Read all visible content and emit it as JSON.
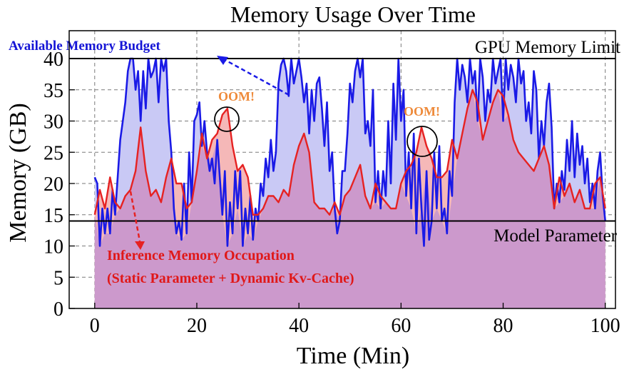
{
  "chart_data": {
    "type": "area",
    "title": "Memory Usage Over Time",
    "xlabel": "Time (Min)",
    "ylabel": "Memory (GB)",
    "xlim": [
      -5,
      102
    ],
    "ylim": [
      0,
      40
    ],
    "xticks": [
      0,
      20,
      40,
      60,
      80,
      100
    ],
    "yticks": [
      0,
      5,
      10,
      15,
      20,
      25,
      30,
      35,
      40
    ],
    "grid": true,
    "reference_lines": [
      {
        "y": 40,
        "label": "GPU Memory Limit"
      },
      {
        "y": 14,
        "label": "Model Parameter"
      }
    ],
    "series": [
      {
        "color": "#1a1ae6",
        "fill": "#c9c9f5",
        "x": [
          0,
          0.5,
          1,
          1.5,
          2,
          2.5,
          3,
          3.5,
          4,
          4.5,
          5,
          5.5,
          6,
          6.5,
          7,
          7.5,
          8,
          8.5,
          9,
          9.5,
          10,
          10.5,
          11,
          11.5,
          12,
          12.5,
          13,
          13.5,
          14,
          14.5,
          15,
          15.5,
          16,
          16.5,
          17,
          17.5,
          18,
          18.5,
          19,
          19.5,
          20,
          20.5,
          21,
          21.5,
          22,
          22.5,
          23,
          23.5,
          24,
          24.5,
          25,
          25.5,
          26,
          26.5,
          27,
          27.5,
          28,
          28.5,
          29,
          29.5,
          30,
          30.5,
          31,
          31.5,
          32,
          32.5,
          33,
          33.5,
          34,
          34.5,
          35,
          35.5,
          36,
          36.5,
          37,
          37.5,
          38,
          38.5,
          39,
          39.5,
          40,
          40.5,
          41,
          41.5,
          42,
          42.5,
          43,
          43.5,
          44,
          44.5,
          45,
          45.5,
          46,
          46.5,
          47,
          47.5,
          48,
          48.5,
          49,
          49.5,
          50,
          50.5,
          51,
          51.5,
          52,
          52.5,
          53,
          53.5,
          54,
          54.5,
          55,
          55.5,
          56,
          56.5,
          57,
          57.5,
          58,
          58.5,
          59,
          59.5,
          60,
          60.5,
          61,
          61.5,
          62,
          62.5,
          63,
          63.5,
          64,
          64.5,
          65,
          65.5,
          66,
          66.5,
          67,
          67.5,
          68,
          68.5,
          69,
          69.5,
          70,
          70.5,
          71,
          71.5,
          72,
          72.5,
          73,
          73.5,
          74,
          74.5,
          75,
          75.5,
          76,
          76.5,
          77,
          77.5,
          78,
          78.5,
          79,
          79.5,
          80,
          80.5,
          81,
          81.5,
          82,
          82.5,
          83,
          83.5,
          84,
          84.5,
          85,
          85.5,
          86,
          86.5,
          87,
          87.5,
          88,
          88.5,
          89,
          89.5,
          90,
          90.5,
          91,
          91.5,
          92,
          92.5,
          93,
          93.5,
          94,
          94.5,
          95,
          95.5,
          96,
          96.5,
          97,
          97.5,
          98,
          98.5,
          99,
          99.5,
          100
        ],
        "values": [
          21,
          20,
          10,
          16,
          12,
          16,
          12,
          19,
          15,
          21,
          27,
          30,
          33,
          38,
          40,
          40,
          35,
          38,
          30,
          38,
          32,
          40,
          37,
          38,
          40,
          33,
          40,
          38,
          40,
          30,
          25,
          16,
          12,
          14,
          11,
          20,
          12,
          25,
          17,
          30,
          31,
          33,
          26,
          30,
          25,
          22,
          24,
          20,
          27,
          21,
          15,
          22,
          10,
          17,
          12,
          22,
          16,
          22,
          10,
          16,
          12,
          18,
          11,
          16,
          14,
          20,
          18,
          24,
          21,
          27,
          22,
          25,
          36,
          39,
          40,
          38,
          34,
          40,
          36,
          38,
          40,
          37,
          33,
          36,
          28,
          35,
          30,
          36,
          37,
          32,
          26,
          33,
          22,
          25,
          16,
          12,
          14,
          22,
          22,
          28,
          36,
          33,
          38,
          40,
          37,
          40,
          28,
          30,
          26,
          35,
          17,
          22,
          16,
          22,
          18,
          30,
          20,
          36,
          27,
          40,
          30,
          35,
          18,
          25,
          16,
          28,
          12,
          24,
          16,
          10,
          22,
          11,
          14,
          25,
          16,
          26,
          14,
          16,
          12,
          22,
          18,
          33,
          40,
          35,
          39,
          37,
          33,
          40,
          36,
          38,
          30,
          40,
          37,
          30,
          35,
          33,
          40,
          36,
          38,
          40,
          30,
          40,
          35,
          39,
          37,
          33,
          40,
          36,
          38,
          30,
          33,
          28,
          38,
          35,
          24,
          30,
          26,
          33,
          36,
          29,
          16,
          20,
          17,
          22,
          19,
          27,
          22,
          30,
          21,
          28,
          23,
          26,
          20,
          24,
          17,
          20,
          16,
          22,
          25,
          18,
          14
        ]
      },
      {
        "color": "#e62222",
        "fill": "#f5b8b8",
        "x": [
          0,
          1,
          2,
          3,
          4,
          5,
          6,
          7,
          8,
          9,
          10,
          11,
          12,
          13,
          14,
          15,
          16,
          17,
          18,
          19,
          20,
          21,
          22,
          23,
          24,
          25,
          26,
          27,
          28,
          29,
          30,
          31,
          32,
          33,
          34,
          35,
          36,
          37,
          38,
          39,
          40,
          41,
          42,
          43,
          44,
          45,
          46,
          47,
          48,
          49,
          50,
          51,
          52,
          53,
          54,
          55,
          56,
          57,
          58,
          59,
          60,
          61,
          62,
          63,
          64,
          65,
          66,
          67,
          68,
          69,
          70,
          71,
          72,
          73,
          74,
          75,
          76,
          77,
          78,
          79,
          80,
          81,
          82,
          83,
          84,
          85,
          86,
          87,
          88,
          89,
          90,
          91,
          92,
          93,
          94,
          95,
          96,
          97,
          98,
          99,
          100
        ],
        "values": [
          15,
          19,
          16,
          21,
          17,
          16,
          18,
          19,
          22,
          29,
          22,
          18,
          19,
          17,
          21,
          24,
          20,
          20,
          16,
          17,
          22,
          28,
          24,
          27,
          28,
          31,
          32,
          26,
          22,
          23,
          21,
          15,
          15,
          16,
          18,
          18,
          17,
          19,
          18,
          23,
          26,
          28,
          25,
          17,
          16,
          16,
          15,
          17,
          15,
          18,
          19,
          21,
          23,
          18,
          16,
          20,
          18,
          17,
          16,
          16,
          20,
          22,
          23,
          25,
          29,
          26,
          24,
          21,
          21,
          22,
          27,
          24,
          28,
          32,
          35,
          33,
          27,
          30,
          33,
          35,
          34,
          31,
          27,
          25,
          24,
          23,
          22,
          24,
          26,
          23,
          16,
          21,
          18,
          20,
          17,
          19,
          16,
          16,
          20,
          21,
          16
        ]
      }
    ]
  },
  "annotations": {
    "available_budget": "Available Memory Budget",
    "inference_line1": "Inference Memory Occupation",
    "inference_line2": "(Static Parameter + Dynamic Kv-Cache)",
    "oom1": "OOM!",
    "oom2": "OOM!"
  },
  "colors": {
    "budget": "#1a1ae6",
    "budget_fill": "#c9c9f5",
    "occupation": "#e62222",
    "occupation_fill": "#f5b8b8",
    "purple_fill": "#cc99cc",
    "oom": "#ee8a3a"
  }
}
